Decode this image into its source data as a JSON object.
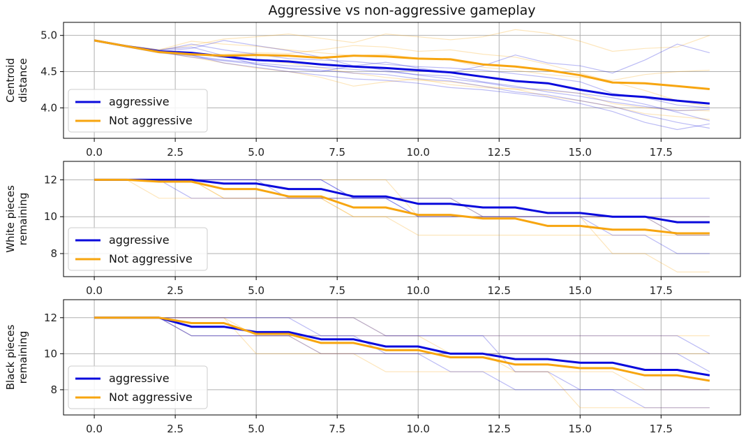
{
  "chart_data": {
    "type": "line",
    "title": "Aggressive vs non-aggressive gameplay",
    "colors": {
      "aggressive": "#0a0adc",
      "not_aggressive": "#f7a50f"
    },
    "grid": true,
    "subplots": [
      {
        "id": "centroid",
        "ylabel_lines": [
          "Centroid",
          "distance"
        ],
        "xlim": [
          -0.95,
          19.95
        ],
        "ylim": [
          3.58,
          5.18
        ],
        "xticks": [
          0.0,
          2.5,
          5.0,
          7.5,
          10.0,
          12.5,
          15.0,
          17.5
        ],
        "xtick_labels": [
          "0.0",
          "2.5",
          "5.0",
          "7.5",
          "10.0",
          "12.5",
          "15.0",
          "17.5"
        ],
        "yticks": [
          4.0,
          4.5,
          5.0
        ],
        "ytick_labels": [
          "4.0",
          "4.5",
          "5.0"
        ],
        "legend": {
          "placement": "lower-left",
          "entries": [
            "aggressive",
            "Not aggressive"
          ]
        },
        "series": [
          {
            "name": "aggressive",
            "x": [
              0,
              1,
              2,
              3,
              4,
              5,
              6,
              7,
              8,
              9,
              10,
              11,
              12,
              13,
              14,
              15,
              16,
              17,
              18,
              19
            ],
            "values": [
              4.93,
              4.85,
              4.78,
              4.76,
              4.71,
              4.66,
              4.64,
              4.6,
              4.57,
              4.55,
              4.52,
              4.49,
              4.43,
              4.37,
              4.34,
              4.25,
              4.18,
              4.15,
              4.1,
              4.06
            ]
          },
          {
            "name": "Not aggressive",
            "x": [
              0,
              1,
              2,
              3,
              4,
              5,
              6,
              7,
              8,
              9,
              10,
              11,
              12,
              13,
              14,
              15,
              16,
              17,
              18,
              19
            ],
            "values": [
              4.93,
              4.85,
              4.77,
              4.74,
              4.72,
              4.73,
              4.72,
              4.69,
              4.72,
              4.71,
              4.68,
              4.67,
              4.6,
              4.57,
              4.52,
              4.45,
              4.35,
              4.34,
              4.3,
              4.26
            ]
          }
        ],
        "faint_runs": {
          "aggressive": [
            [
              4.93,
              4.86,
              4.78,
              4.82,
              4.93,
              4.86,
              4.79,
              4.7,
              4.58,
              4.63,
              4.55,
              4.49,
              4.58,
              4.73,
              4.62,
              4.58,
              4.48,
              4.66,
              4.88,
              4.76
            ],
            [
              4.93,
              4.85,
              4.77,
              4.7,
              4.65,
              4.6,
              4.55,
              4.52,
              4.48,
              4.46,
              4.4,
              4.37,
              4.3,
              4.22,
              4.18,
              4.1,
              4.02,
              3.9,
              3.8,
              3.72
            ],
            [
              4.93,
              4.84,
              4.76,
              4.72,
              4.66,
              4.62,
              4.58,
              4.56,
              4.53,
              4.5,
              4.46,
              4.44,
              4.36,
              4.3,
              4.22,
              4.16,
              4.08,
              4.02,
              3.96,
              3.98
            ],
            [
              4.93,
              4.85,
              4.79,
              4.88,
              4.8,
              4.74,
              4.68,
              4.66,
              4.64,
              4.6,
              4.57,
              4.55,
              4.52,
              4.47,
              4.42,
              4.36,
              4.2,
              4.14,
              4.04,
              4.0
            ],
            [
              4.93,
              4.86,
              4.8,
              4.84,
              4.72,
              4.6,
              4.54,
              4.5,
              4.58,
              4.52,
              4.45,
              4.4,
              4.35,
              4.28,
              4.25,
              4.2,
              4.14,
              4.05,
              3.94,
              3.82
            ],
            [
              4.93,
              4.85,
              4.77,
              4.73,
              4.62,
              4.56,
              4.5,
              4.45,
              4.4,
              4.38,
              4.34,
              4.28,
              4.25,
              4.2,
              4.15,
              4.06,
              3.95,
              3.8,
              3.7,
              3.78
            ]
          ],
          "not_aggressive": [
            [
              4.93,
              4.86,
              4.8,
              4.86,
              4.95,
              4.98,
              5.02,
              4.96,
              4.9,
              5.02,
              4.98,
              4.94,
              4.98,
              5.08,
              5.03,
              4.92,
              4.78,
              4.82,
              4.84,
              5.0
            ],
            [
              4.93,
              4.85,
              4.78,
              4.72,
              4.74,
              4.76,
              4.75,
              4.8,
              4.86,
              4.84,
              4.78,
              4.8,
              4.74,
              4.7,
              4.6,
              4.48,
              4.36,
              4.24,
              4.1,
              4.02
            ],
            [
              4.93,
              4.84,
              4.76,
              4.74,
              4.7,
              4.66,
              4.62,
              4.55,
              4.48,
              4.42,
              4.38,
              4.36,
              4.3,
              4.26,
              4.16,
              4.1,
              4.02,
              3.92,
              3.88,
              3.84
            ],
            [
              4.93,
              4.86,
              4.8,
              4.92,
              4.88,
              4.85,
              4.8,
              4.76,
              4.72,
              4.74,
              4.68,
              4.66,
              4.56,
              4.52,
              4.46,
              4.42,
              4.38,
              4.46,
              4.5,
              4.52
            ],
            [
              4.93,
              4.85,
              4.77,
              4.7,
              4.62,
              4.55,
              4.5,
              4.42,
              4.3,
              4.36,
              4.4,
              4.32,
              4.28,
              4.26,
              4.24,
              4.2,
              4.06,
              4.0,
              3.97,
              3.96
            ]
          ]
        }
      },
      {
        "id": "white",
        "ylabel_lines": [
          "White pieces",
          "remaining"
        ],
        "xlim": [
          -0.95,
          19.95
        ],
        "ylim": [
          6.75,
          13.0
        ],
        "xticks": [
          0.0,
          2.5,
          5.0,
          7.5,
          10.0,
          12.5,
          15.0,
          17.5
        ],
        "xtick_labels": [
          "0.0",
          "2.5",
          "5.0",
          "7.5",
          "10.0",
          "12.5",
          "15.0",
          "17.5"
        ],
        "yticks": [
          8,
          10,
          12
        ],
        "ytick_labels": [
          "8",
          "10",
          "12"
        ],
        "legend": {
          "placement": "lower-left",
          "entries": [
            "aggressive",
            "Not aggressive"
          ]
        },
        "series": [
          {
            "name": "aggressive",
            "x": [
              0,
              1,
              2,
              3,
              4,
              5,
              6,
              7,
              8,
              9,
              10,
              11,
              12,
              13,
              14,
              15,
              16,
              17,
              18,
              19
            ],
            "values": [
              12,
              12,
              12,
              12,
              11.8,
              11.8,
              11.5,
              11.5,
              11.1,
              11.1,
              10.7,
              10.7,
              10.5,
              10.5,
              10.2,
              10.2,
              10.0,
              10.0,
              9.7,
              9.7
            ]
          },
          {
            "name": "Not aggressive",
            "x": [
              0,
              1,
              2,
              3,
              4,
              5,
              6,
              7,
              8,
              9,
              10,
              11,
              12,
              13,
              14,
              15,
              16,
              17,
              18,
              19
            ],
            "values": [
              12,
              12,
              11.9,
              11.9,
              11.5,
              11.5,
              11.1,
              11.1,
              10.5,
              10.5,
              10.1,
              10.1,
              9.9,
              9.9,
              9.5,
              9.5,
              9.3,
              9.3,
              9.1,
              9.1
            ]
          }
        ],
        "faint_runs": {
          "aggressive": [
            [
              12,
              12,
              12,
              12,
              12,
              12,
              12,
              12,
              11,
              11,
              11,
              11,
              11,
              11,
              11,
              11,
              11,
              11,
              11,
              11
            ],
            [
              12,
              12,
              12,
              12,
              12,
              12,
              12,
              12,
              11,
              11,
              11,
              11,
              10,
              10,
              10,
              10,
              10,
              10,
              10,
              10
            ],
            [
              12,
              12,
              12,
              12,
              12,
              12,
              11,
              11,
              11,
              11,
              10,
              10,
              10,
              10,
              10,
              10,
              10,
              10,
              9,
              9
            ],
            [
              12,
              12,
              12,
              11,
              11,
              11,
              11,
              11,
              11,
              11,
              10,
              10,
              10,
              10,
              10,
              10,
              9,
              9,
              8,
              8
            ]
          ],
          "not_aggressive": [
            [
              12,
              12,
              11,
              11,
              11,
              11,
              11,
              11,
              10,
              10,
              9,
              9,
              9,
              9,
              9,
              9,
              9,
              9,
              9,
              9
            ],
            [
              12,
              12,
              12,
              12,
              11,
              11,
              11,
              11,
              10,
              10,
              10,
              10,
              10,
              10,
              10,
              10,
              8,
              8,
              7,
              7
            ],
            [
              12,
              12,
              12,
              12,
              12,
              12,
              12,
              12,
              12,
              12,
              10,
              10,
              10,
              10,
              10,
              10,
              10,
              10,
              10,
              10
            ],
            [
              12,
              12,
              12,
              12,
              11,
              11,
              11,
              11,
              11,
              11,
              11,
              11,
              10,
              10,
              10,
              10,
              10,
              10,
              9,
              9
            ]
          ]
        }
      },
      {
        "id": "black",
        "ylabel_lines": [
          "Black pieces",
          "remaining"
        ],
        "xlim": [
          -0.95,
          19.95
        ],
        "ylim": [
          6.6,
          13.0
        ],
        "xticks": [
          0.0,
          2.5,
          5.0,
          7.5,
          10.0,
          12.5,
          15.0,
          17.5
        ],
        "xtick_labels": [
          "0.0",
          "2.5",
          "5.0",
          "7.5",
          "10.0",
          "12.5",
          "15.0",
          "17.5"
        ],
        "yticks": [
          8,
          10,
          12
        ],
        "ytick_labels": [
          "8",
          "10",
          "12"
        ],
        "legend": {
          "placement": "lower-left",
          "entries": [
            "aggressive",
            "Not aggressive"
          ]
        },
        "series": [
          {
            "name": "aggressive",
            "x": [
              0,
              1,
              2,
              3,
              4,
              5,
              6,
              7,
              8,
              9,
              10,
              11,
              12,
              13,
              14,
              15,
              16,
              17,
              18,
              19
            ],
            "values": [
              12,
              12,
              12,
              11.5,
              11.5,
              11.2,
              11.2,
              10.8,
              10.8,
              10.4,
              10.4,
              10.0,
              10.0,
              9.7,
              9.7,
              9.5,
              9.5,
              9.1,
              9.1,
              8.8
            ]
          },
          {
            "name": "Not aggressive",
            "x": [
              0,
              1,
              2,
              3,
              4,
              5,
              6,
              7,
              8,
              9,
              10,
              11,
              12,
              13,
              14,
              15,
              16,
              17,
              18,
              19
            ],
            "values": [
              12,
              12,
              12,
              11.7,
              11.7,
              11.1,
              11.1,
              10.6,
              10.6,
              10.2,
              10.2,
              9.8,
              9.8,
              9.4,
              9.4,
              9.2,
              9.2,
              8.8,
              8.8,
              8.5
            ]
          }
        ],
        "faint_runs": {
          "aggressive": [
            [
              12,
              12,
              12,
              12,
              12,
              12,
              12,
              11,
              11,
              11,
              11,
              11,
              11,
              11,
              11,
              11,
              11,
              11,
              11,
              10
            ],
            [
              12,
              12,
              12,
              11,
              11,
              11,
              11,
              11,
              11,
              10,
              10,
              10,
              10,
              10,
              10,
              10,
              10,
              10,
              10,
              9
            ],
            [
              12,
              12,
              12,
              12,
              12,
              12,
              12,
              12,
              12,
              11,
              11,
              11,
              11,
              9,
              9,
              8,
              8,
              7,
              7,
              7
            ],
            [
              12,
              12,
              12,
              11,
              11,
              11,
              11,
              10,
              10,
              10,
              10,
              9,
              9,
              8,
              8,
              8,
              8,
              8,
              8,
              8
            ]
          ],
          "not_aggressive": [
            [
              12,
              12,
              12,
              12,
              12,
              11,
              11,
              11,
              11,
              11,
              11,
              10,
              10,
              10,
              10,
              10,
              10,
              10,
              10,
              10
            ],
            [
              12,
              12,
              12,
              12,
              12,
              10,
              10,
              10,
              10,
              9,
              9,
              9,
              9,
              9,
              9,
              7,
              7,
              7,
              7,
              7
            ],
            [
              12,
              12,
              12,
              12,
              12,
              12,
              12,
              12,
              12,
              11,
              11,
              11,
              11,
              11,
              11,
              11,
              11,
              11,
              11,
              11
            ],
            [
              12,
              12,
              12,
              11,
              11,
              11,
              11,
              10,
              10,
              10,
              10,
              10,
              10,
              9,
              9,
              9,
              9,
              8,
              8,
              8
            ]
          ]
        }
      }
    ]
  }
}
